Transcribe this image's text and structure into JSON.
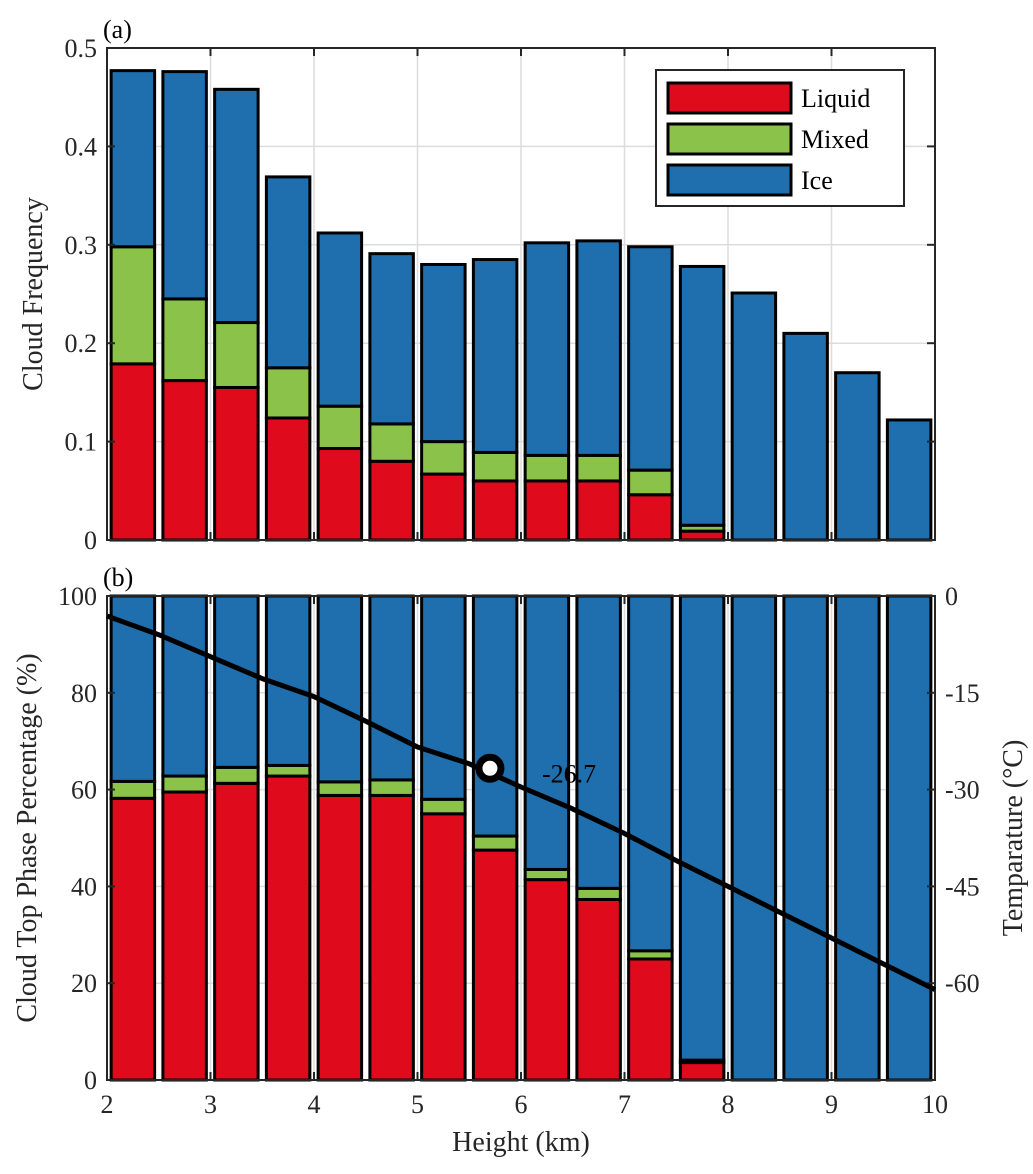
{
  "chart_data": [
    {
      "type": "bar",
      "stacked": true,
      "panel_label": "(a)",
      "ylabel": "Cloud Frequency",
      "xlim": [
        2,
        10
      ],
      "ylim": [
        0,
        0.5
      ],
      "x_ticks": [
        "2",
        "3",
        "4",
        "5",
        "6",
        "7",
        "8",
        "9",
        "10"
      ],
      "y_ticks": [
        "0",
        "0.1",
        "0.2",
        "0.3",
        "0.4",
        "0.5"
      ],
      "grid": true,
      "legend_position": "top-right",
      "x": [
        2.25,
        2.75,
        3.25,
        3.75,
        4.25,
        4.75,
        5.25,
        5.75,
        6.25,
        6.75,
        7.25,
        7.75,
        8.25,
        8.75,
        9.25,
        9.75
      ],
      "series": [
        {
          "name": "Liquid",
          "color": "#df0b1c",
          "values": [
            0.179,
            0.162,
            0.155,
            0.124,
            0.093,
            0.08,
            0.067,
            0.06,
            0.06,
            0.06,
            0.046,
            0.009,
            0,
            0,
            0,
            0
          ]
        },
        {
          "name": "Mixed",
          "color": "#8bc34a",
          "values": [
            0.119,
            0.083,
            0.066,
            0.051,
            0.043,
            0.038,
            0.033,
            0.029,
            0.026,
            0.026,
            0.025,
            0.006,
            0,
            0,
            0,
            0
          ]
        },
        {
          "name": "Ice",
          "color": "#1f6fae",
          "values": [
            0.179,
            0.231,
            0.237,
            0.194,
            0.176,
            0.173,
            0.18,
            0.196,
            0.216,
            0.218,
            0.227,
            0.263,
            0.251,
            0.21,
            0.17,
            0.122
          ]
        }
      ]
    },
    {
      "type": "bar",
      "stacked": true,
      "panel_label": "(b)",
      "xlabel": "Height (km)",
      "ylabel": "Cloud Top Phase Percentage (%)",
      "ylabel_right": "Temparature (°C)",
      "xlim": [
        2,
        10
      ],
      "ylim": [
        0,
        100
      ],
      "ylim_right": [
        -75,
        0
      ],
      "x_ticks": [
        "2",
        "3",
        "4",
        "5",
        "6",
        "7",
        "8",
        "9",
        "10"
      ],
      "y_ticks": [
        "0",
        "20",
        "40",
        "60",
        "80",
        "100"
      ],
      "y_ticks_right": [
        "0",
        "-15",
        "-30",
        "-45",
        "-60"
      ],
      "grid": true,
      "x": [
        2.25,
        2.75,
        3.25,
        3.75,
        4.25,
        4.75,
        5.25,
        5.75,
        6.25,
        6.75,
        7.25,
        7.75,
        8.25,
        8.75,
        9.25,
        9.75
      ],
      "series": [
        {
          "name": "Liquid",
          "color": "#df0b1c",
          "values": [
            58.2,
            59.5,
            61.3,
            62.8,
            58.8,
            58.8,
            55.0,
            47.5,
            41.4,
            37.3,
            25.0,
            3.6,
            0,
            0,
            0,
            0
          ]
        },
        {
          "name": "Mixed",
          "color": "#8bc34a",
          "values": [
            3.5,
            3.3,
            3.3,
            2.2,
            2.8,
            3.2,
            3.0,
            2.9,
            2.1,
            2.3,
            1.7,
            0.5,
            0,
            0,
            0,
            0
          ]
        },
        {
          "name": "Ice",
          "color": "#1f6fae",
          "values": [
            38.3,
            37.2,
            35.4,
            35.0,
            38.4,
            38.0,
            42.0,
            49.6,
            56.5,
            60.4,
            73.3,
            95.9,
            100,
            100,
            100,
            100
          ]
        }
      ],
      "temperature_line": {
        "color": "#000000",
        "x": [
          2,
          2.5,
          3,
          3.5,
          4,
          4.5,
          5,
          5.5,
          6,
          6.5,
          7,
          7.5,
          8,
          8.5,
          9,
          9.5,
          10
        ],
        "values": [
          -3.1,
          -6.0,
          -9.4,
          -12.8,
          -15.6,
          -19.4,
          -23.4,
          -26.0,
          -29.6,
          -33.0,
          -36.8,
          -41.0,
          -45.0,
          -49.0,
          -53.0,
          -57.0,
          -61.0
        ]
      },
      "annotation": {
        "x": 5.7,
        "y": -26.7,
        "text": "-26.7"
      }
    }
  ]
}
